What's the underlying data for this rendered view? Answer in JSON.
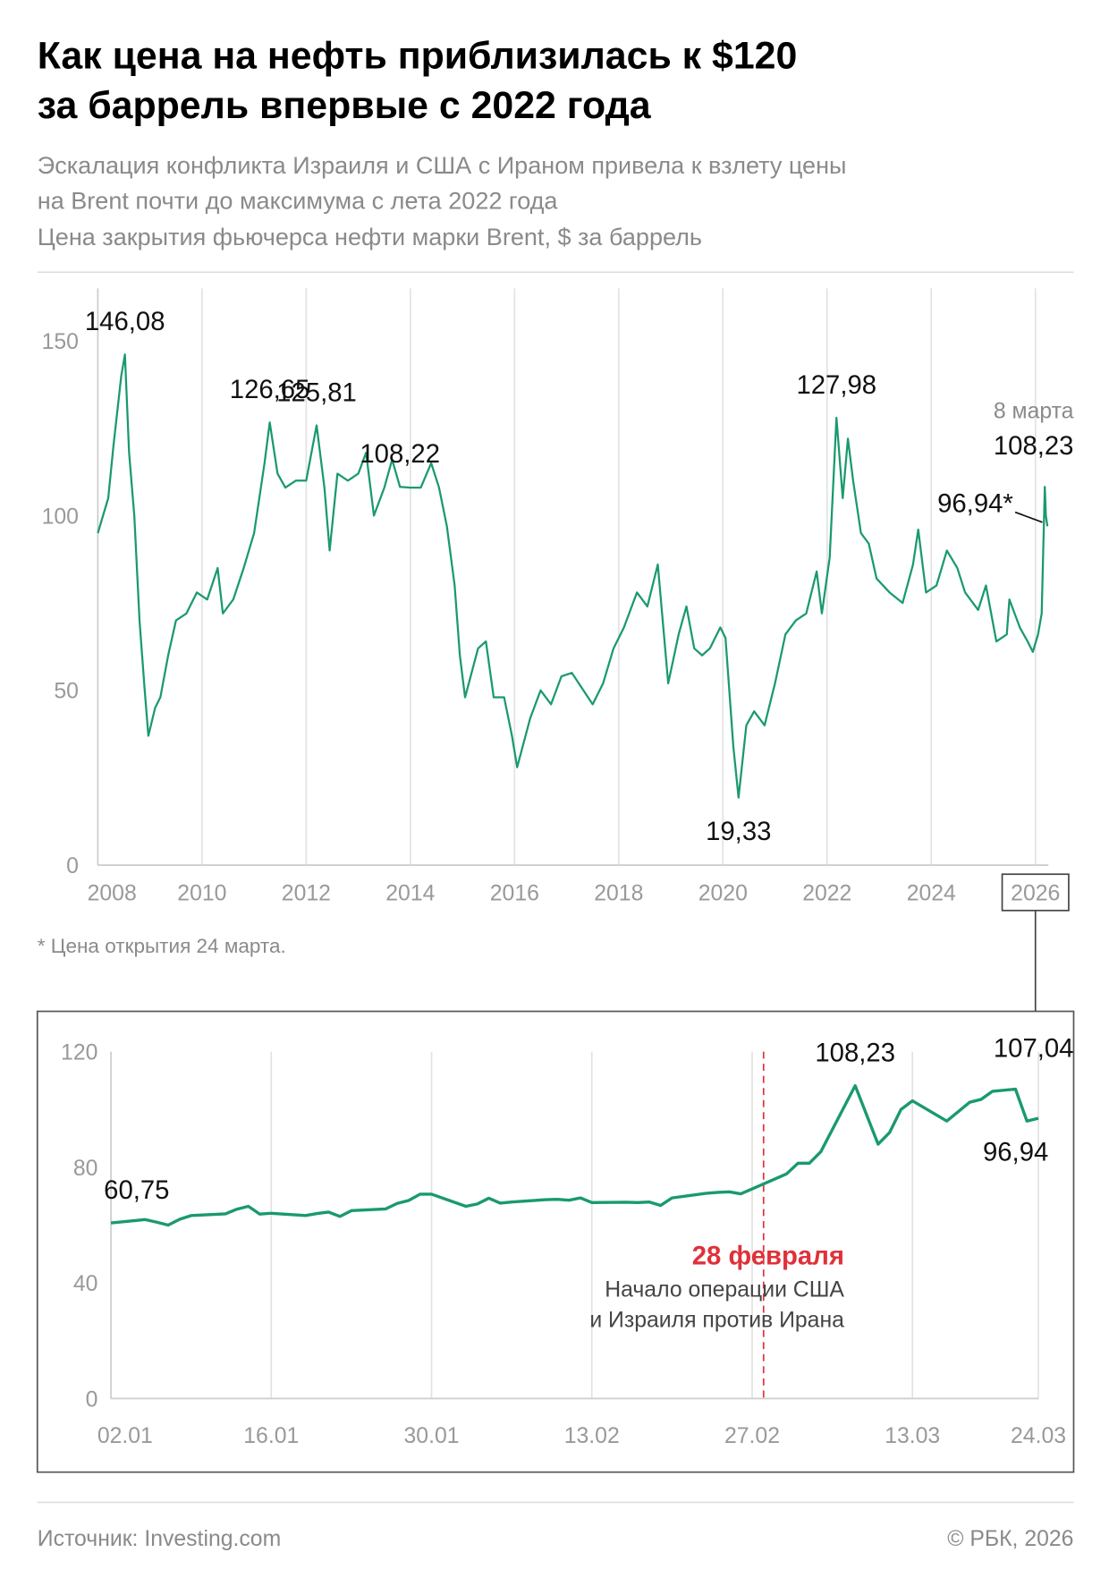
{
  "header": {
    "title": [
      "Как цена на нефть приблизилась к $120",
      "за баррель впервые с 2022 года"
    ],
    "subtitle": [
      "Эскалация конфликта Израиля и США с Ираном привела к взлету цены",
      "на Brent почти до максимума с лета 2022 года"
    ]
  },
  "chart_data": [
    {
      "type": "line",
      "ylabel": "Цена закрытия фьючерса нефти марки Brent, $ за баррель",
      "x": [
        2008.0,
        2008.1,
        2008.2,
        2008.3,
        2008.45,
        2008.52,
        2008.6,
        2008.7,
        2008.8,
        2008.9,
        2008.97,
        2009.1,
        2009.2,
        2009.35,
        2009.5,
        2009.7,
        2009.9,
        2010.1,
        2010.3,
        2010.4,
        2010.6,
        2010.8,
        2011.0,
        2011.2,
        2011.3,
        2011.45,
        2011.6,
        2011.8,
        2012.0,
        2012.2,
        2012.35,
        2012.45,
        2012.6,
        2012.8,
        2013.0,
        2013.15,
        2013.3,
        2013.5,
        2013.65,
        2013.8,
        2014.0,
        2014.2,
        2014.4,
        2014.55,
        2014.7,
        2014.85,
        2014.95,
        2015.05,
        2015.3,
        2015.45,
        2015.6,
        2015.8,
        2015.95,
        2016.05,
        2016.3,
        2016.5,
        2016.7,
        2016.9,
        2017.1,
        2017.5,
        2017.7,
        2017.9,
        2018.1,
        2018.35,
        2018.55,
        2018.75,
        2018.95,
        2019.15,
        2019.3,
        2019.45,
        2019.6,
        2019.75,
        2019.95,
        2020.05,
        2020.2,
        2020.3,
        2020.45,
        2020.6,
        2020.8,
        2021.0,
        2021.2,
        2021.4,
        2021.6,
        2021.8,
        2021.9,
        2022.05,
        2022.18,
        2022.3,
        2022.4,
        2022.5,
        2022.65,
        2022.8,
        2022.95,
        2023.2,
        2023.45,
        2023.65,
        2023.75,
        2023.9,
        2024.1,
        2024.3,
        2024.5,
        2024.65,
        2024.9,
        2025.05,
        2025.25,
        2025.45,
        2025.5,
        2025.7,
        2025.85,
        2025.95,
        2026.05,
        2026.12,
        2026.18,
        2026.2,
        2026.23
      ],
      "series": [
        {
          "color": "#1a9a6c",
          "values": [
            95,
            100,
            105,
            120,
            140,
            146.08,
            118,
            100,
            70,
            50,
            37,
            45,
            48,
            60,
            70,
            72,
            78,
            76,
            85,
            72,
            76,
            85,
            95,
            115,
            126.65,
            112,
            108,
            110,
            110,
            125.81,
            108,
            90,
            112,
            110,
            112,
            118,
            100,
            108,
            116,
            108.22,
            108,
            108,
            115,
            108,
            97,
            80,
            60,
            48,
            62,
            64,
            48,
            48,
            37,
            28,
            42,
            50,
            46,
            54,
            55,
            46,
            52,
            62,
            68,
            78,
            74,
            86,
            52,
            66,
            74,
            62,
            60,
            62,
            68,
            65,
            34,
            19.33,
            40,
            44,
            40,
            52,
            66,
            70,
            72,
            84,
            72,
            88,
            127.98,
            105,
            122,
            110,
            95,
            92,
            82,
            78,
            75,
            86,
            96,
            78,
            80,
            90,
            85,
            78,
            73,
            80,
            64,
            66,
            76,
            68,
            64,
            61,
            66,
            72,
            108.23,
            100,
            96.94
          ],
          "value_labels": [
            null,
            null,
            null,
            null,
            null,
            "146,08",
            null,
            null,
            null,
            null,
            null,
            null,
            null,
            null,
            null,
            null,
            null,
            null,
            null,
            null,
            null,
            null,
            null,
            null,
            "126,65",
            null,
            null,
            null,
            null,
            "125,81",
            null,
            null,
            null,
            null,
            null,
            null,
            null,
            null,
            null,
            "108,22",
            null,
            null,
            null,
            null,
            null,
            null,
            null,
            null,
            null,
            null,
            null,
            null,
            null,
            null,
            null,
            null,
            null,
            null,
            null,
            null,
            null,
            null,
            null,
            null,
            null,
            null,
            null,
            null,
            null,
            null,
            null,
            null,
            null,
            null,
            null,
            "19,33",
            null,
            null,
            null,
            null,
            null,
            null,
            null,
            null,
            null,
            null,
            "127,98",
            null,
            null,
            null,
            null,
            null,
            null,
            null,
            null,
            null,
            null,
            null,
            null,
            null,
            null,
            null,
            null,
            null,
            null,
            null,
            null,
            null,
            null,
            null,
            null,
            null,
            "108,23",
            null,
            "96,94*"
          ]
        }
      ],
      "annotations": [
        {
          "text": "8 марта"
        }
      ],
      "xlim": [
        2008,
        2026.25
      ],
      "xticks": [
        2008,
        2010,
        2012,
        2014,
        2016,
        2018,
        2020,
        2022,
        2024,
        2026
      ],
      "ylim": [
        0,
        165
      ],
      "yticks": [
        0,
        50,
        100,
        150
      ],
      "grid": "x",
      "note": "* Цена открытия 24 марта."
    },
    {
      "type": "line",
      "x": [
        2,
        5,
        6,
        7,
        8,
        9,
        12,
        13,
        14,
        15,
        16,
        19,
        20,
        21,
        22,
        23,
        26,
        27,
        28,
        29,
        30,
        33,
        34,
        35,
        36,
        37,
        40,
        41,
        42,
        43,
        44,
        47,
        48,
        49,
        50,
        51,
        54,
        55,
        56,
        57,
        58,
        61,
        62,
        63,
        64,
        67,
        69,
        70,
        71,
        72,
        75,
        77,
        78,
        79,
        81,
        82,
        83
      ],
      "series": [
        {
          "color": "#1a9a6c",
          "values": [
            60.75,
            61.9,
            61.0,
            60.0,
            62,
            63.3,
            63.9,
            65.5,
            66.5,
            63.8,
            64.1,
            63.3,
            64.0,
            64.5,
            63.0,
            65.0,
            65.6,
            67.5,
            68.5,
            70.7,
            70.7,
            66.5,
            67.3,
            69.3,
            67.6,
            68.0,
            68.8,
            68.9,
            68.6,
            69.4,
            67.8,
            67.9,
            67.8,
            68.0,
            66.8,
            69.4,
            71.0,
            71.3,
            71.5,
            70.8,
            72.5,
            77.7,
            81.4,
            81.4,
            85.4,
            108.23,
            88,
            92,
            100,
            103,
            96,
            102.5,
            103.5,
            106.3,
            107.04,
            96.0,
            96.94
          ],
          "value_labels": [
            "60,75",
            null,
            null,
            null,
            null,
            null,
            null,
            null,
            null,
            null,
            null,
            null,
            null,
            null,
            null,
            null,
            null,
            null,
            null,
            null,
            null,
            null,
            null,
            null,
            null,
            null,
            null,
            null,
            null,
            null,
            null,
            null,
            null,
            null,
            null,
            null,
            null,
            null,
            null,
            null,
            null,
            null,
            null,
            null,
            null,
            "108,23",
            null,
            null,
            null,
            null,
            null,
            null,
            null,
            null,
            "107,04",
            null,
            "96,94"
          ]
        }
      ],
      "xlim": [
        2,
        83
      ],
      "xticks": [
        {
          "value": 2,
          "label": "02.01"
        },
        {
          "value": 16,
          "label": "16.01"
        },
        {
          "value": 30,
          "label": "30.01"
        },
        {
          "value": 44,
          "label": "13.02"
        },
        {
          "value": 58,
          "label": "27.02"
        },
        {
          "value": 72,
          "label": "13.03"
        },
        {
          "value": 83,
          "label": "24.03"
        }
      ],
      "ylim": [
        0,
        120
      ],
      "yticks": [
        0,
        40,
        80,
        120
      ],
      "grid": "x",
      "events": [
        {
          "x": 59,
          "label": "28 февраля",
          "text": [
            "Начало операции США",
            "и Израиля против Ирана"
          ]
        }
      ]
    }
  ],
  "footer": {
    "source": "Источник: Investing.com",
    "copyright": "© РБК, 2026"
  }
}
